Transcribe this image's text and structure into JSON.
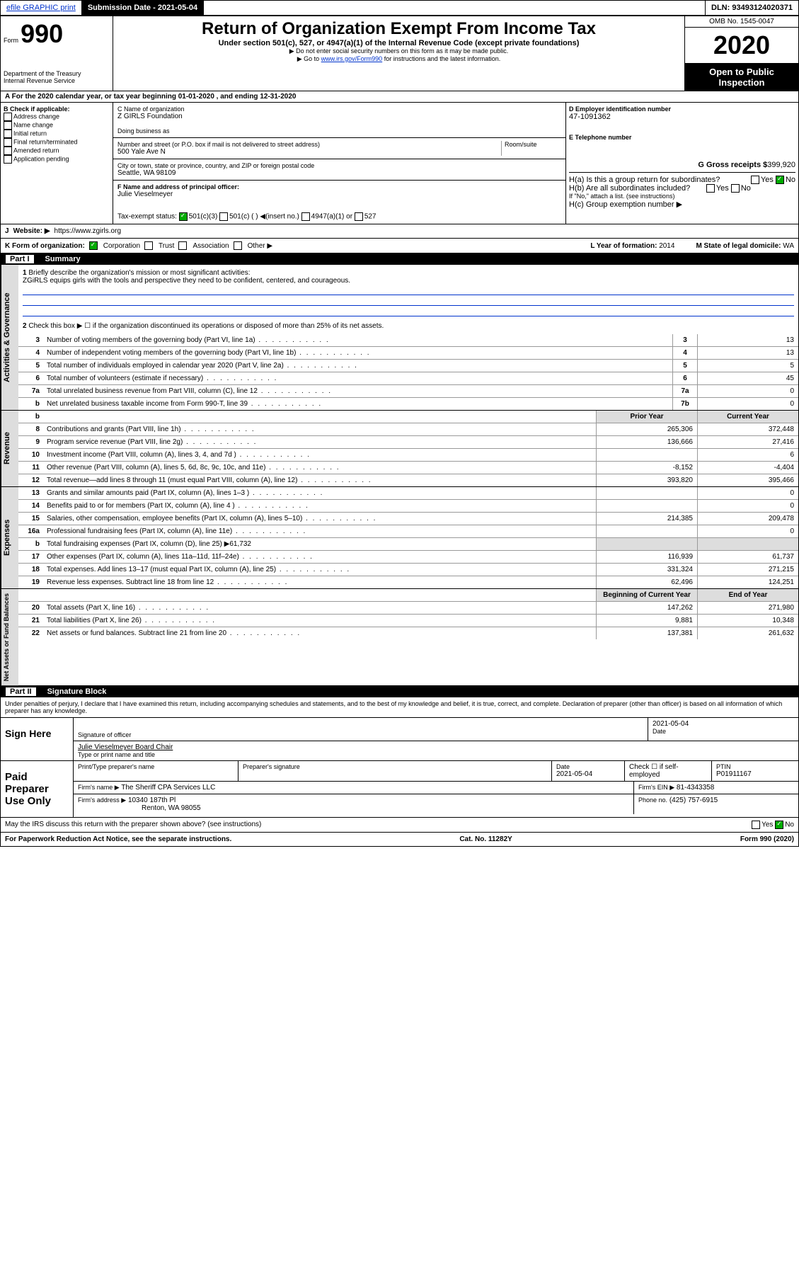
{
  "topbar": {
    "efile": "efile GRAPHIC print",
    "submission_label": "Submission Date - 2021-05-04",
    "dln": "DLN: 93493124020371"
  },
  "header": {
    "form_label": "Form",
    "form_num": "990",
    "dept": "Department of the Treasury",
    "irs": "Internal Revenue Service",
    "title": "Return of Organization Exempt From Income Tax",
    "subtitle": "Under section 501(c), 527, or 4947(a)(1) of the Internal Revenue Code (except private foundations)",
    "note1": "▶ Do not enter social security numbers on this form as it may be made public.",
    "note2_pre": "▶ Go to ",
    "note2_link": "www.irs.gov/Form990",
    "note2_post": " for instructions and the latest information.",
    "omb": "OMB No. 1545-0047",
    "year": "2020",
    "inspect": "Open to Public Inspection"
  },
  "row_a": "A For the 2020 calendar year, or tax year beginning 01-01-2020   , and ending 12-31-2020",
  "col_b": {
    "header": "B Check if applicable:",
    "items": [
      "Address change",
      "Name change",
      "Initial return",
      "Final return/terminated",
      "Amended return",
      "Application pending"
    ]
  },
  "col_c": {
    "name_label": "C Name of organization",
    "name": "Z GIRLS Foundation",
    "dba_label": "Doing business as",
    "addr_label": "Number and street (or P.O. box if mail is not delivered to street address)",
    "room_label": "Room/suite",
    "addr": "500 Yale Ave N",
    "city_label": "City or town, state or province, country, and ZIP or foreign postal code",
    "city": "Seattle, WA  98109",
    "officer_label": "F Name and address of principal officer:",
    "officer": "Julie Vieselmeyer"
  },
  "col_d": {
    "ein_label": "D Employer identification number",
    "ein": "47-1091362",
    "phone_label": "E Telephone number",
    "gross_label": "G Gross receipts $",
    "gross": "399,920",
    "ha_label": "H(a)  Is this a group return for subordinates?",
    "hb_label": "H(b)  Are all subordinates included?",
    "hb_note": "If \"No,\" attach a list. (see instructions)",
    "hc_label": "H(c)  Group exemption number ▶",
    "yes": "Yes",
    "no": "No"
  },
  "tax_exempt": {
    "label": "Tax-exempt status:",
    "opt1": "501(c)(3)",
    "opt2": "501(c) (  ) ◀(insert no.)",
    "opt3": "4947(a)(1) or",
    "opt4": "527"
  },
  "row_j": {
    "label": "J",
    "website_label": "Website: ▶",
    "website": "https://www.zgirls.org"
  },
  "row_k": {
    "label": "K Form of organization:",
    "opts": [
      "Corporation",
      "Trust",
      "Association",
      "Other ▶"
    ],
    "l_label": "L Year of formation:",
    "l_val": "2014",
    "m_label": "M State of legal domicile:",
    "m_val": "WA"
  },
  "part1": {
    "label": "Part I",
    "title": "Summary",
    "q1_label": "1",
    "q1": "Briefly describe the organization's mission or most significant activities:",
    "q1_ans": "ZGiRLS equips girls with the tools and perspective they need to be confident, centered, and courageous.",
    "q2_label": "2",
    "q2": "Check this box ▶ ☐  if the organization discontinued its operations or disposed of more than 25% of its net assets."
  },
  "sections": {
    "governance": "Activities & Governance",
    "revenue": "Revenue",
    "expenses": "Expenses",
    "netassets": "Net Assets or Fund Balances"
  },
  "gov_rows": [
    {
      "n": "3",
      "d": "Number of voting members of the governing body (Part VI, line 1a)",
      "sn": "3",
      "v": "13"
    },
    {
      "n": "4",
      "d": "Number of independent voting members of the governing body (Part VI, line 1b)",
      "sn": "4",
      "v": "13"
    },
    {
      "n": "5",
      "d": "Total number of individuals employed in calendar year 2020 (Part V, line 2a)",
      "sn": "5",
      "v": "5"
    },
    {
      "n": "6",
      "d": "Total number of volunteers (estimate if necessary)",
      "sn": "6",
      "v": "45"
    },
    {
      "n": "7a",
      "d": "Total unrelated business revenue from Part VIII, column (C), line 12",
      "sn": "7a",
      "v": "0"
    },
    {
      "n": "b",
      "d": "Net unrelated business taxable income from Form 990-T, line 39",
      "sn": "7b",
      "v": "0"
    }
  ],
  "col_headers": {
    "prior": "Prior Year",
    "current": "Current Year"
  },
  "rev_rows": [
    {
      "n": "8",
      "d": "Contributions and grants (Part VIII, line 1h)",
      "p": "265,306",
      "c": "372,448"
    },
    {
      "n": "9",
      "d": "Program service revenue (Part VIII, line 2g)",
      "p": "136,666",
      "c": "27,416"
    },
    {
      "n": "10",
      "d": "Investment income (Part VIII, column (A), lines 3, 4, and 7d )",
      "p": "",
      "c": "6"
    },
    {
      "n": "11",
      "d": "Other revenue (Part VIII, column (A), lines 5, 6d, 8c, 9c, 10c, and 11e)",
      "p": "-8,152",
      "c": "-4,404"
    },
    {
      "n": "12",
      "d": "Total revenue—add lines 8 through 11 (must equal Part VIII, column (A), line 12)",
      "p": "393,820",
      "c": "395,466"
    }
  ],
  "exp_rows": [
    {
      "n": "13",
      "d": "Grants and similar amounts paid (Part IX, column (A), lines 1–3 )",
      "p": "",
      "c": "0"
    },
    {
      "n": "14",
      "d": "Benefits paid to or for members (Part IX, column (A), line 4 )",
      "p": "",
      "c": "0"
    },
    {
      "n": "15",
      "d": "Salaries, other compensation, employee benefits (Part IX, column (A), lines 5–10)",
      "p": "214,385",
      "c": "209,478"
    },
    {
      "n": "16a",
      "d": "Professional fundraising fees (Part IX, column (A), line 11e)",
      "p": "",
      "c": "0"
    },
    {
      "n": "b",
      "d": "Total fundraising expenses (Part IX, column (D), line 25) ▶61,732",
      "p": "—",
      "c": "—"
    },
    {
      "n": "17",
      "d": "Other expenses (Part IX, column (A), lines 11a–11d, 11f–24e)",
      "p": "116,939",
      "c": "61,737"
    },
    {
      "n": "18",
      "d": "Total expenses. Add lines 13–17 (must equal Part IX, column (A), line 25)",
      "p": "331,324",
      "c": "271,215"
    },
    {
      "n": "19",
      "d": "Revenue less expenses. Subtract line 18 from line 12",
      "p": "62,496",
      "c": "124,251"
    }
  ],
  "na_headers": {
    "begin": "Beginning of Current Year",
    "end": "End of Year"
  },
  "na_rows": [
    {
      "n": "20",
      "d": "Total assets (Part X, line 16)",
      "p": "147,262",
      "c": "271,980"
    },
    {
      "n": "21",
      "d": "Total liabilities (Part X, line 26)",
      "p": "9,881",
      "c": "10,348"
    },
    {
      "n": "22",
      "d": "Net assets or fund balances. Subtract line 21 from line 20",
      "p": "137,381",
      "c": "261,632"
    }
  ],
  "part2": {
    "label": "Part II",
    "title": "Signature Block",
    "perjury": "Under penalties of perjury, I declare that I have examined this return, including accompanying schedules and statements, and to the best of my knowledge and belief, it is true, correct, and complete. Declaration of preparer (other than officer) is based on all information of which preparer has any knowledge."
  },
  "sign": {
    "here": "Sign Here",
    "sig_officer": "Signature of officer",
    "date_label": "Date",
    "date": "2021-05-04",
    "name_title": "Julie Vieselmeyer  Board Chair",
    "type_label": "Type or print name and title"
  },
  "preparer": {
    "label": "Paid Preparer Use Only",
    "print_label": "Print/Type preparer's name",
    "sig_label": "Preparer's signature",
    "date_label": "Date",
    "date": "2021-05-04",
    "check_label": "Check ☐ if self-employed",
    "ptin_label": "PTIN",
    "ptin": "P01911167",
    "firm_name_label": "Firm's name    ▶",
    "firm_name": "The Sheriff CPA Services LLC",
    "firm_ein_label": "Firm's EIN ▶",
    "firm_ein": "81-4343358",
    "firm_addr_label": "Firm's address ▶",
    "firm_addr": "10340 187th Pl",
    "firm_city": "Renton, WA  98055",
    "phone_label": "Phone no.",
    "phone": "(425) 757-6915"
  },
  "footer": {
    "discuss": "May the IRS discuss this return with the preparer shown above? (see instructions)",
    "paperwork": "For Paperwork Reduction Act Notice, see the separate instructions.",
    "cat": "Cat. No. 11282Y",
    "form": "Form 990 (2020)",
    "yes": "Yes",
    "no": "No"
  }
}
